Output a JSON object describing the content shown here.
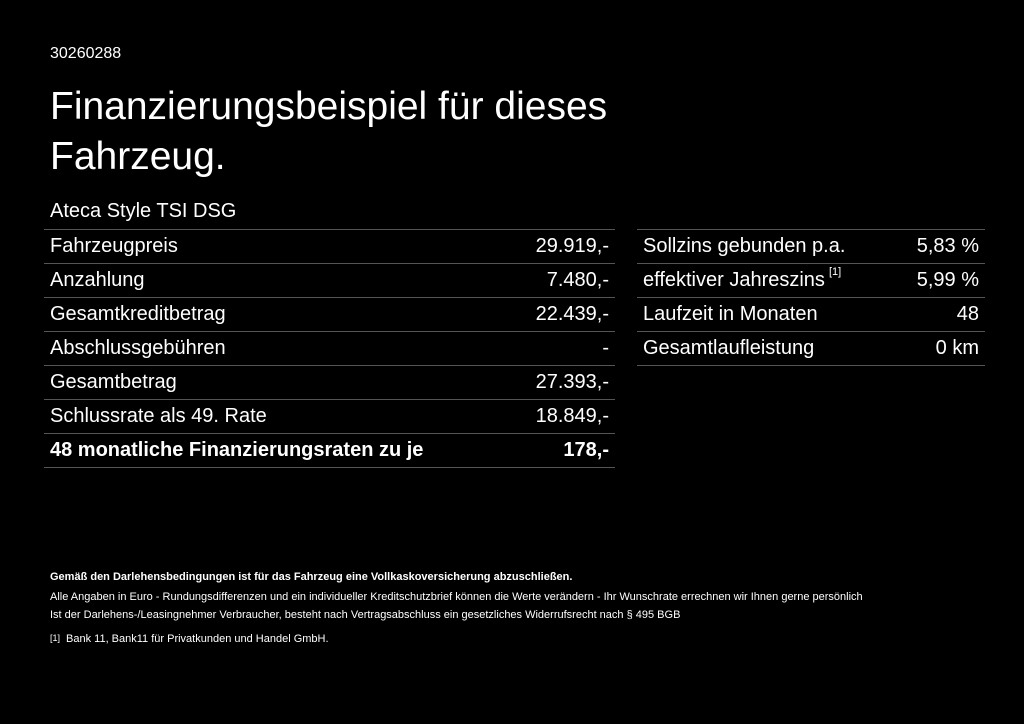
{
  "header": {
    "id": "30260288",
    "title_line1": "Finanzierungsbeispiel für dieses",
    "title_line2": "Fahrzeug.",
    "model": "Ateca Style TSI DSG"
  },
  "left_table": {
    "rows": [
      [
        "Fahrzeugpreis",
        "29.919,-"
      ],
      [
        "Anzahlung",
        "7.480,-"
      ],
      [
        "Gesamtkreditbetrag",
        "22.439,-"
      ],
      [
        "Abschlussgebühren",
        "-"
      ],
      [
        "Gesamtbetrag",
        "27.393,-"
      ],
      [
        "Schlussrate als 49. Rate",
        "18.849,-"
      ],
      [
        "48 monatliche Finanzierungsraten zu je",
        "178,-"
      ]
    ]
  },
  "right_table": {
    "rows": [
      [
        "Sollzins gebunden p.a.",
        "5,83 %"
      ],
      [
        "effektiver Jahreszins",
        "5,99 %"
      ],
      [
        "Laufzeit in Monaten",
        "48"
      ],
      [
        "Gesamtlaufleistung",
        "0 km"
      ]
    ],
    "footnote_ref": "[1]"
  },
  "notes": {
    "bold": "Gemäß den Darlehensbedingungen ist für das Fahrzeug eine Vollkaskoversicherung abzuschließen.",
    "line1": "Alle Angaben in Euro - Rundungsdifferenzen und ein individueller Kreditschutzbrief können die Werte verändern - Ihr Wunschrate errechnen wir Ihnen gerne persönlich",
    "line2": "Ist der Darlehens-/Leasingnehmer Verbraucher, besteht nach Vertragsabschluss ein gesetzliches Widerrufsrecht nach § 495 BGB",
    "footnote_mark": "[1]",
    "footnote_text": "Bank 11, Bank11 für Privatkunden und Handel GmbH."
  }
}
